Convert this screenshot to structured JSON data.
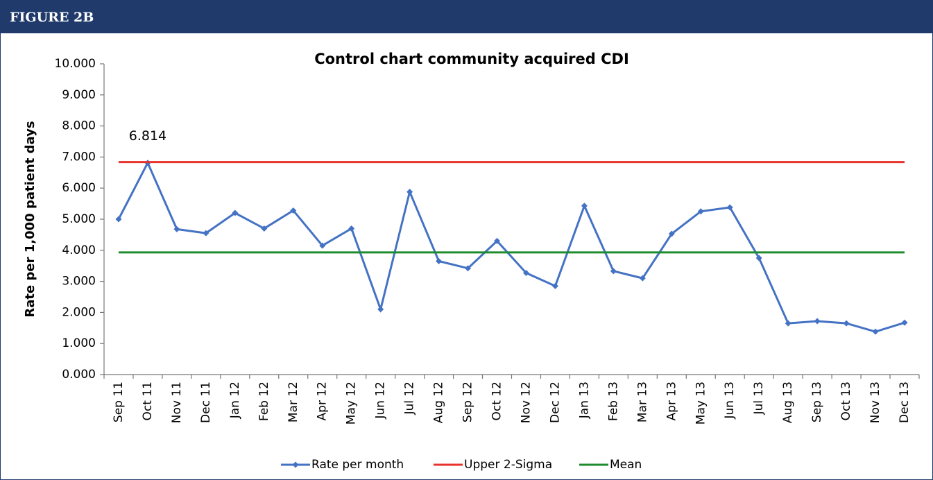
{
  "header": {
    "title": "FIGURE 2B"
  },
  "chart_data": {
    "type": "line",
    "title": "Control chart community acquired CDI",
    "y_label": "Rate per 1,000 patient days",
    "categories": [
      "Sep 11",
      "Oct 11",
      "Nov 11",
      "Dec 11",
      "Jan 12",
      "Feb 12",
      "Mar 12",
      "Apr 12",
      "May 12",
      "Jun 12",
      "Jul 12",
      "Aug 12",
      "Sep 12",
      "Oct 12",
      "Nov 12",
      "Dec 12",
      "Jan 13",
      "Feb 13",
      "Mar 13",
      "Apr 13",
      "May 13",
      "Jun 13",
      "Jul 13",
      "Aug 13",
      "Sep 13",
      "Oct 13",
      "Nov 13",
      "Dec 13"
    ],
    "series": [
      {
        "name": "Rate per month",
        "color": "#4472c4",
        "marker": "diamond",
        "values": [
          5.0,
          6.814,
          4.68,
          4.55,
          5.2,
          4.7,
          5.28,
          4.15,
          4.7,
          2.1,
          5.88,
          3.65,
          3.42,
          4.3,
          3.27,
          2.85,
          5.43,
          3.33,
          3.1,
          4.53,
          5.25,
          5.38,
          3.75,
          1.65,
          1.72,
          1.65,
          1.38,
          1.67
        ],
        "value_labels": [
          null,
          "6.814",
          null,
          null,
          null,
          null,
          null,
          null,
          null,
          null,
          null,
          null,
          null,
          null,
          null,
          null,
          null,
          null,
          null,
          null,
          null,
          null,
          null,
          null,
          null,
          null,
          null,
          null
        ]
      },
      {
        "name": "Upper 2-Sigma",
        "color": "#e8322c",
        "values": [
          6.84,
          6.84,
          6.84,
          6.84,
          6.84,
          6.84,
          6.84,
          6.84,
          6.84,
          6.84,
          6.84,
          6.84,
          6.84,
          6.84,
          6.84,
          6.84,
          6.84,
          6.84,
          6.84,
          6.84,
          6.84,
          6.84,
          6.84,
          6.84,
          6.84,
          6.84,
          6.84,
          6.84
        ]
      },
      {
        "name": "Mean",
        "color": "#1e8c2e",
        "values": [
          3.93,
          3.93,
          3.93,
          3.93,
          3.93,
          3.93,
          3.93,
          3.93,
          3.93,
          3.93,
          3.93,
          3.93,
          3.93,
          3.93,
          3.93,
          3.93,
          3.93,
          3.93,
          3.93,
          3.93,
          3.93,
          3.93,
          3.93,
          3.93,
          3.93,
          3.93,
          3.93,
          3.93
        ]
      }
    ],
    "ylim": [
      0,
      10
    ],
    "yticks": [
      {
        "value": 0,
        "label": "0.000"
      },
      {
        "value": 1,
        "label": "1.000"
      },
      {
        "value": 2,
        "label": "2.000"
      },
      {
        "value": 3,
        "label": "3.000"
      },
      {
        "value": 4,
        "label": "4.000"
      },
      {
        "value": 5,
        "label": "5.000"
      },
      {
        "value": 6,
        "label": "6.000"
      },
      {
        "value": 7,
        "label": "7.000"
      },
      {
        "value": 8,
        "label": "8.000"
      },
      {
        "value": 9,
        "label": "9.000"
      },
      {
        "value": 10,
        "label": "10.000"
      }
    ],
    "grid": false,
    "legend": "bottom"
  }
}
